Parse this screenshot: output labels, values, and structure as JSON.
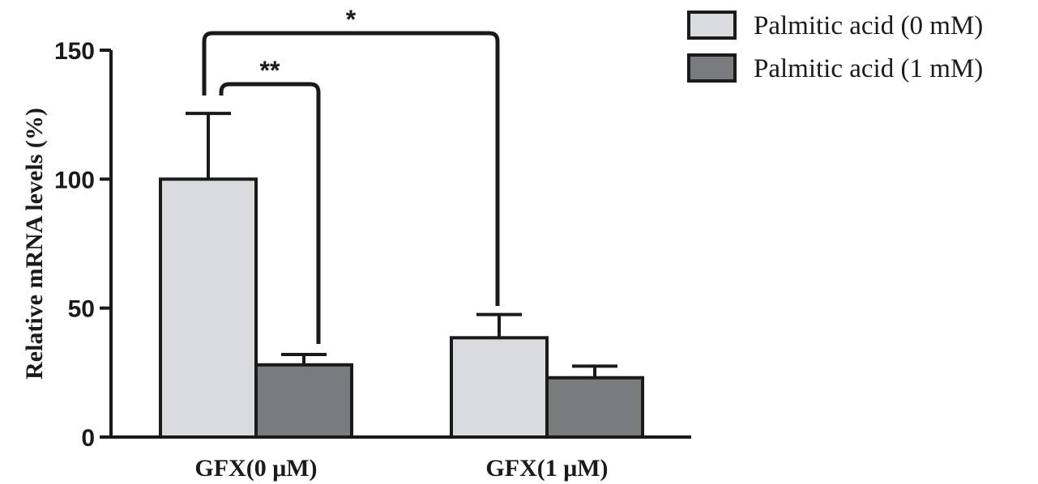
{
  "chart_data": {
    "type": "bar",
    "title": "",
    "xlabel": "",
    "ylabel": "Relative mRNA levels (%)",
    "ylim": [
      0,
      150
    ],
    "yticks": [
      "0",
      "50",
      "100",
      "150"
    ],
    "categories": [
      "GFX(0 μM)",
      "GFX(1 μM)"
    ],
    "series": [
      {
        "name": "Palmitic acid (0 mM)",
        "color": "#d9dbdc",
        "values": [
          100,
          38.5
        ],
        "errors": [
          25.5,
          9
        ]
      },
      {
        "name": "Palmitic acid (1 mM)",
        "color": "#7a7b7d",
        "values": [
          28,
          23
        ],
        "errors": [
          4,
          4.5
        ]
      }
    ],
    "legend_position": "top-right",
    "significance": [
      {
        "label": "**",
        "from": "GFX(0 μM) / Palmitic acid (0 mM)",
        "to": "GFX(0 μM) / Palmitic acid (1 mM)"
      },
      {
        "label": "*",
        "from": "GFX(0 μM) / Palmitic acid (0 mM)",
        "to": "GFX(1 μM) / Palmitic acid (0 mM)"
      }
    ]
  }
}
